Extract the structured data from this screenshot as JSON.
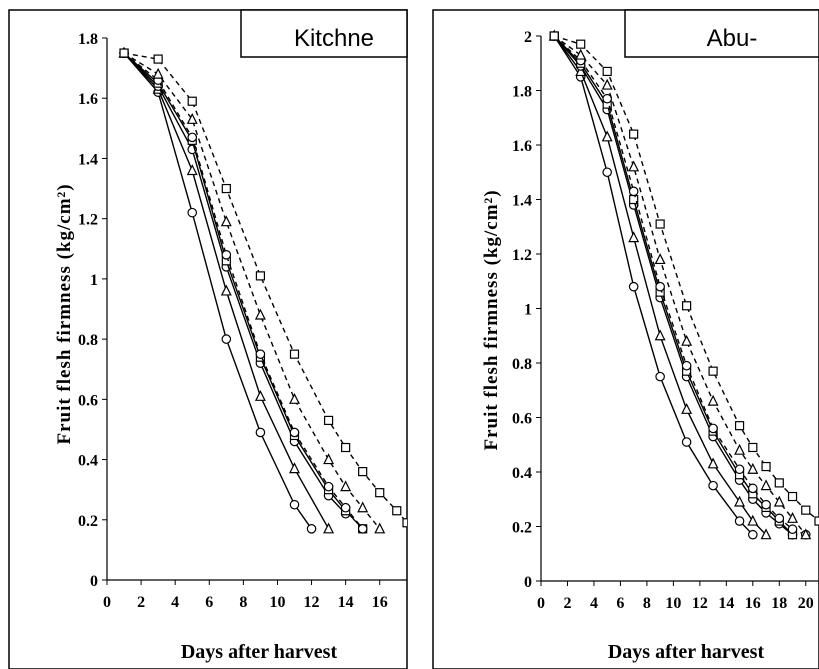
{
  "chart_data": [
    {
      "type": "line",
      "title": "Kitchne",
      "xlabel": "Days after harvest",
      "ylabel": "Fruit flesh firmness (kg/cm²)",
      "xlim": [
        0,
        17.6
      ],
      "ylim": [
        0,
        1.8
      ],
      "xticks": [
        "0",
        "2",
        "4",
        "6",
        "8",
        "10",
        "12",
        "14",
        "16"
      ],
      "yticks": [
        "0",
        "0.2",
        "0.4",
        "0.6",
        "0.8",
        "1",
        "1.2",
        "1.4",
        "1.6",
        "1.8"
      ],
      "series": [
        {
          "marker": "circle",
          "dash": "solid",
          "x": [
            1,
            3,
            5,
            7,
            9,
            11,
            12
          ],
          "y": [
            1.75,
            1.62,
            1.22,
            0.8,
            0.49,
            0.25,
            0.17
          ]
        },
        {
          "marker": "triangle",
          "dash": "solid",
          "x": [
            1,
            3,
            5,
            7,
            9,
            11,
            13
          ],
          "y": [
            1.75,
            1.63,
            1.36,
            0.96,
            0.61,
            0.37,
            0.17
          ]
        },
        {
          "marker": "circle",
          "dash": "solid",
          "x": [
            1,
            3,
            5,
            7,
            9,
            11,
            13,
            14
          ],
          "y": [
            1.75,
            1.64,
            1.43,
            1.04,
            0.72,
            0.46,
            0.28,
            0.22
          ]
        },
        {
          "marker": "square",
          "dash": "solid",
          "x": [
            1,
            3,
            5,
            7,
            9,
            11,
            13,
            14,
            15
          ],
          "y": [
            1.75,
            1.65,
            1.46,
            1.06,
            0.74,
            0.48,
            0.3,
            0.23,
            0.17
          ]
        },
        {
          "marker": "circle",
          "dash": "dashed",
          "x": [
            1,
            3,
            5,
            7,
            9,
            11,
            13,
            14,
            15
          ],
          "y": [
            1.75,
            1.66,
            1.47,
            1.08,
            0.75,
            0.49,
            0.31,
            0.24,
            0.17
          ]
        },
        {
          "marker": "triangle",
          "dash": "dashed",
          "x": [
            1,
            3,
            5,
            7,
            9,
            11,
            13,
            14,
            15,
            16
          ],
          "y": [
            1.75,
            1.68,
            1.53,
            1.19,
            0.88,
            0.6,
            0.4,
            0.31,
            0.24,
            0.17
          ]
        },
        {
          "marker": "square",
          "dash": "dashed",
          "x": [
            1,
            3,
            5,
            7,
            9,
            11,
            13,
            14,
            15,
            16,
            17,
            17.6
          ],
          "y": [
            1.75,
            1.73,
            1.59,
            1.3,
            1.01,
            0.75,
            0.53,
            0.44,
            0.36,
            0.29,
            0.23,
            0.19
          ]
        }
      ]
    },
    {
      "type": "line",
      "title": "Abu-",
      "xlabel": "Days after harvest",
      "ylabel": "Fruit flesh firmness (kg/cm²)",
      "xlim": [
        0,
        21
      ],
      "ylim": [
        0,
        2
      ],
      "xticks": [
        "0",
        "2",
        "4",
        "6",
        "8",
        "10",
        "12",
        "14",
        "16",
        "18",
        "20"
      ],
      "yticks": [
        "0",
        "0.2",
        "0.4",
        "0.6",
        "0.8",
        "1",
        "1.2",
        "1.4",
        "1.6",
        "1.8",
        "2"
      ],
      "series": [
        {
          "marker": "circle",
          "dash": "solid",
          "x": [
            1,
            3,
            5,
            7,
            9,
            11,
            13,
            15,
            16
          ],
          "y": [
            2.0,
            1.85,
            1.5,
            1.08,
            0.75,
            0.51,
            0.35,
            0.22,
            0.17
          ]
        },
        {
          "marker": "triangle",
          "dash": "solid",
          "x": [
            1,
            3,
            5,
            7,
            9,
            11,
            13,
            15,
            16,
            17
          ],
          "y": [
            2.0,
            1.87,
            1.63,
            1.26,
            0.9,
            0.63,
            0.43,
            0.29,
            0.22,
            0.17
          ]
        },
        {
          "marker": "circle",
          "dash": "solid",
          "x": [
            1,
            3,
            5,
            7,
            9,
            11,
            13,
            15,
            16,
            17,
            18,
            19
          ],
          "y": [
            2.0,
            1.89,
            1.73,
            1.38,
            1.04,
            0.75,
            0.53,
            0.37,
            0.3,
            0.25,
            0.21,
            0.17
          ]
        },
        {
          "marker": "square",
          "dash": "solid",
          "x": [
            1,
            3,
            5,
            7,
            9,
            11,
            13,
            15,
            16,
            17,
            18,
            19
          ],
          "y": [
            2.0,
            1.9,
            1.75,
            1.4,
            1.06,
            0.77,
            0.55,
            0.39,
            0.32,
            0.27,
            0.22,
            0.17
          ]
        },
        {
          "marker": "circle",
          "dash": "dashed",
          "x": [
            1,
            3,
            5,
            7,
            9,
            11,
            13,
            15,
            16,
            17,
            18,
            19,
            20
          ],
          "y": [
            2.0,
            1.91,
            1.77,
            1.43,
            1.08,
            0.79,
            0.56,
            0.41,
            0.34,
            0.28,
            0.23,
            0.19,
            0.17
          ]
        },
        {
          "marker": "triangle",
          "dash": "dashed",
          "x": [
            1,
            3,
            5,
            7,
            9,
            11,
            13,
            15,
            16,
            17,
            18,
            19,
            20
          ],
          "y": [
            2.0,
            1.93,
            1.82,
            1.52,
            1.18,
            0.88,
            0.66,
            0.48,
            0.41,
            0.35,
            0.29,
            0.23,
            0.17
          ]
        },
        {
          "marker": "square",
          "dash": "dashed",
          "x": [
            1,
            3,
            5,
            7,
            9,
            11,
            13,
            15,
            16,
            17,
            18,
            19,
            20,
            21
          ],
          "y": [
            2.0,
            1.97,
            1.87,
            1.64,
            1.31,
            1.01,
            0.77,
            0.57,
            0.49,
            0.42,
            0.36,
            0.31,
            0.26,
            0.22
          ]
        }
      ]
    }
  ]
}
